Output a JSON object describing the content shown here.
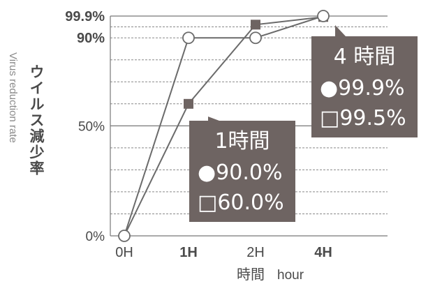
{
  "chart_data": {
    "type": "line",
    "title": "",
    "xlabel_ja": "時間",
    "xlabel_en": "hour",
    "ylabel_ja": "ウイルス減少率",
    "ylabel_en": "Virus reduction rate",
    "x": [
      "0H",
      "1H",
      "2H",
      "4H"
    ],
    "x_bold": [
      false,
      true,
      false,
      true
    ],
    "ylim": [
      0,
      100
    ],
    "yticks": [
      {
        "value": 0,
        "label": "0%",
        "bold": false
      },
      {
        "value": 50,
        "label": "50%",
        "bold": false
      },
      {
        "value": 90,
        "label": "90%",
        "bold": true
      },
      {
        "value": 99.9,
        "label": "99.9%",
        "bold": true
      }
    ],
    "series": [
      {
        "marker": "circle",
        "values": [
          0,
          90.0,
          90.0,
          99.9
        ]
      },
      {
        "marker": "square",
        "values": [
          0,
          60.0,
          96.0,
          99.5
        ]
      }
    ],
    "callouts": [
      {
        "title": "1時間",
        "line1": "●90.0%",
        "line2": "□60.0%",
        "x_index": 1
      },
      {
        "title": "4 時間",
        "line1": "●99.9%",
        "line2": "□99.5%",
        "x_index": 3
      }
    ],
    "grid": true
  }
}
